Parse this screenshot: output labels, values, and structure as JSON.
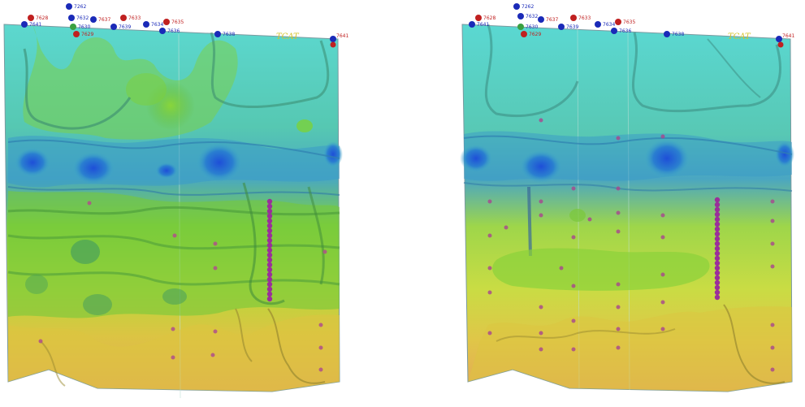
{
  "colors": {
    "deep_blue": "#1f5fd0",
    "cyan_top": "#5ad8d0",
    "green_mid": "#7ad23a",
    "yellow": "#d8d23a",
    "orange_bottom": "#e0a050",
    "marker_purple": "#9a3a9a",
    "well_blue": "#1a2ab8",
    "well_red": "#c02020"
  },
  "panels": [
    {
      "id": "left",
      "surface_label": "TCAT",
      "wells": [
        {
          "label": "7262",
          "color": "blue"
        },
        {
          "label": "7628",
          "color": "red"
        },
        {
          "label": "7641",
          "color": "blue"
        },
        {
          "label": "7632",
          "color": "red"
        },
        {
          "label": "7637",
          "color": "red"
        },
        {
          "label": "7633",
          "color": "red"
        },
        {
          "label": "7630",
          "color": "blue"
        },
        {
          "label": "7629",
          "color": "red"
        },
        {
          "label": "7639",
          "color": "blue"
        },
        {
          "label": "7634",
          "color": "blue"
        },
        {
          "label": "7636",
          "color": "blue"
        },
        {
          "label": "7635",
          "color": "red"
        },
        {
          "label": "7638",
          "color": "blue"
        },
        {
          "label": "7641",
          "color": "red"
        }
      ]
    },
    {
      "id": "right",
      "surface_label": "TCAT",
      "wells": [
        {
          "label": "7262",
          "color": "blue"
        },
        {
          "label": "7628",
          "color": "red"
        },
        {
          "label": "7641",
          "color": "blue"
        },
        {
          "label": "7632",
          "color": "red"
        },
        {
          "label": "7637",
          "color": "red"
        },
        {
          "label": "7633",
          "color": "red"
        },
        {
          "label": "7630",
          "color": "blue"
        },
        {
          "label": "7629",
          "color": "red"
        },
        {
          "label": "7639",
          "color": "blue"
        },
        {
          "label": "7634",
          "color": "blue"
        },
        {
          "label": "7636",
          "color": "blue"
        },
        {
          "label": "7635",
          "color": "red"
        },
        {
          "label": "7638",
          "color": "blue"
        },
        {
          "label": "7641",
          "color": "red"
        }
      ]
    }
  ]
}
